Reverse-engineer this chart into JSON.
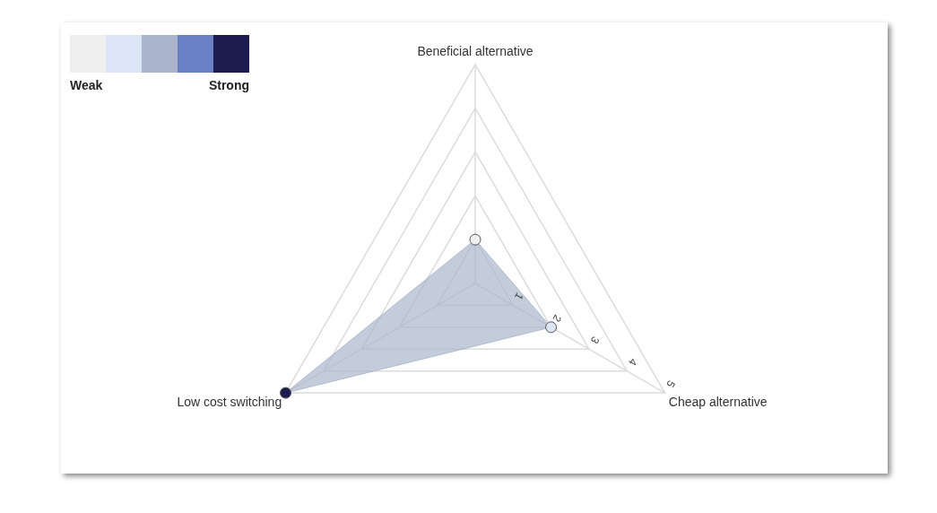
{
  "chart_data": {
    "type": "radar",
    "categories": [
      "Beneficial alternative",
      "Cheap alternative",
      "Low cost switching"
    ],
    "series": [
      {
        "color": "#a9b6cc",
        "values": [
          1,
          2,
          5
        ],
        "colors": [
          "#efefef",
          "#dce5f5",
          "#1c1c4e"
        ]
      }
    ],
    "annotations": [
      "Weak",
      "Strong"
    ],
    "ylim": [
      0,
      5
    ],
    "yticks": [
      1,
      2,
      3,
      4,
      5
    ],
    "grid": true,
    "legend": false,
    "marker": "circle"
  }
}
